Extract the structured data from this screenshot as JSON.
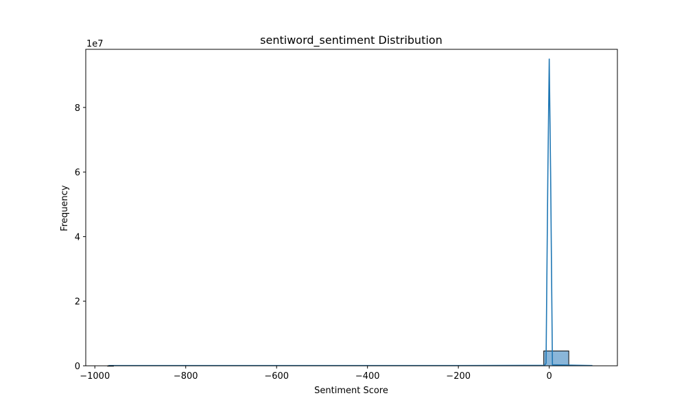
{
  "chart_data": {
    "type": "histogram",
    "title": "sentiword_sentiment Distribution",
    "xlabel": "Sentiment Score",
    "ylabel": "Frequency",
    "y_offset_text": "1e7",
    "xlim": [
      -1020,
      150
    ],
    "ylim": [
      0,
      98000000
    ],
    "x_ticks": [
      -1000,
      -800,
      -600,
      -400,
      -200,
      0
    ],
    "x_tick_labels": [
      "−1000",
      "−800",
      "−600",
      "−400",
      "−200",
      "0"
    ],
    "y_ticks": [
      0,
      20000000,
      40000000,
      60000000,
      80000000
    ],
    "y_tick_labels": [
      "0",
      "2",
      "4",
      "6",
      "8"
    ],
    "bars": [
      {
        "x0": -972,
        "x1": -959,
        "value": 0
      },
      {
        "x0": -12,
        "x1": 43,
        "value": 4600000
      }
    ],
    "kde": {
      "x": [
        -970,
        -800,
        -600,
        -400,
        -200,
        -10,
        -7,
        -3,
        0,
        3,
        7,
        95
      ],
      "y": [
        80000,
        80000,
        80000,
        80000,
        80000,
        150000,
        800000,
        60000000,
        95000000,
        60000000,
        300000,
        80000
      ]
    },
    "grid": false,
    "legend": "none",
    "colors": {
      "bar_fill": "#8ab6d9",
      "bar_edge": "#000000",
      "kde_line": "#1f77b4"
    }
  }
}
